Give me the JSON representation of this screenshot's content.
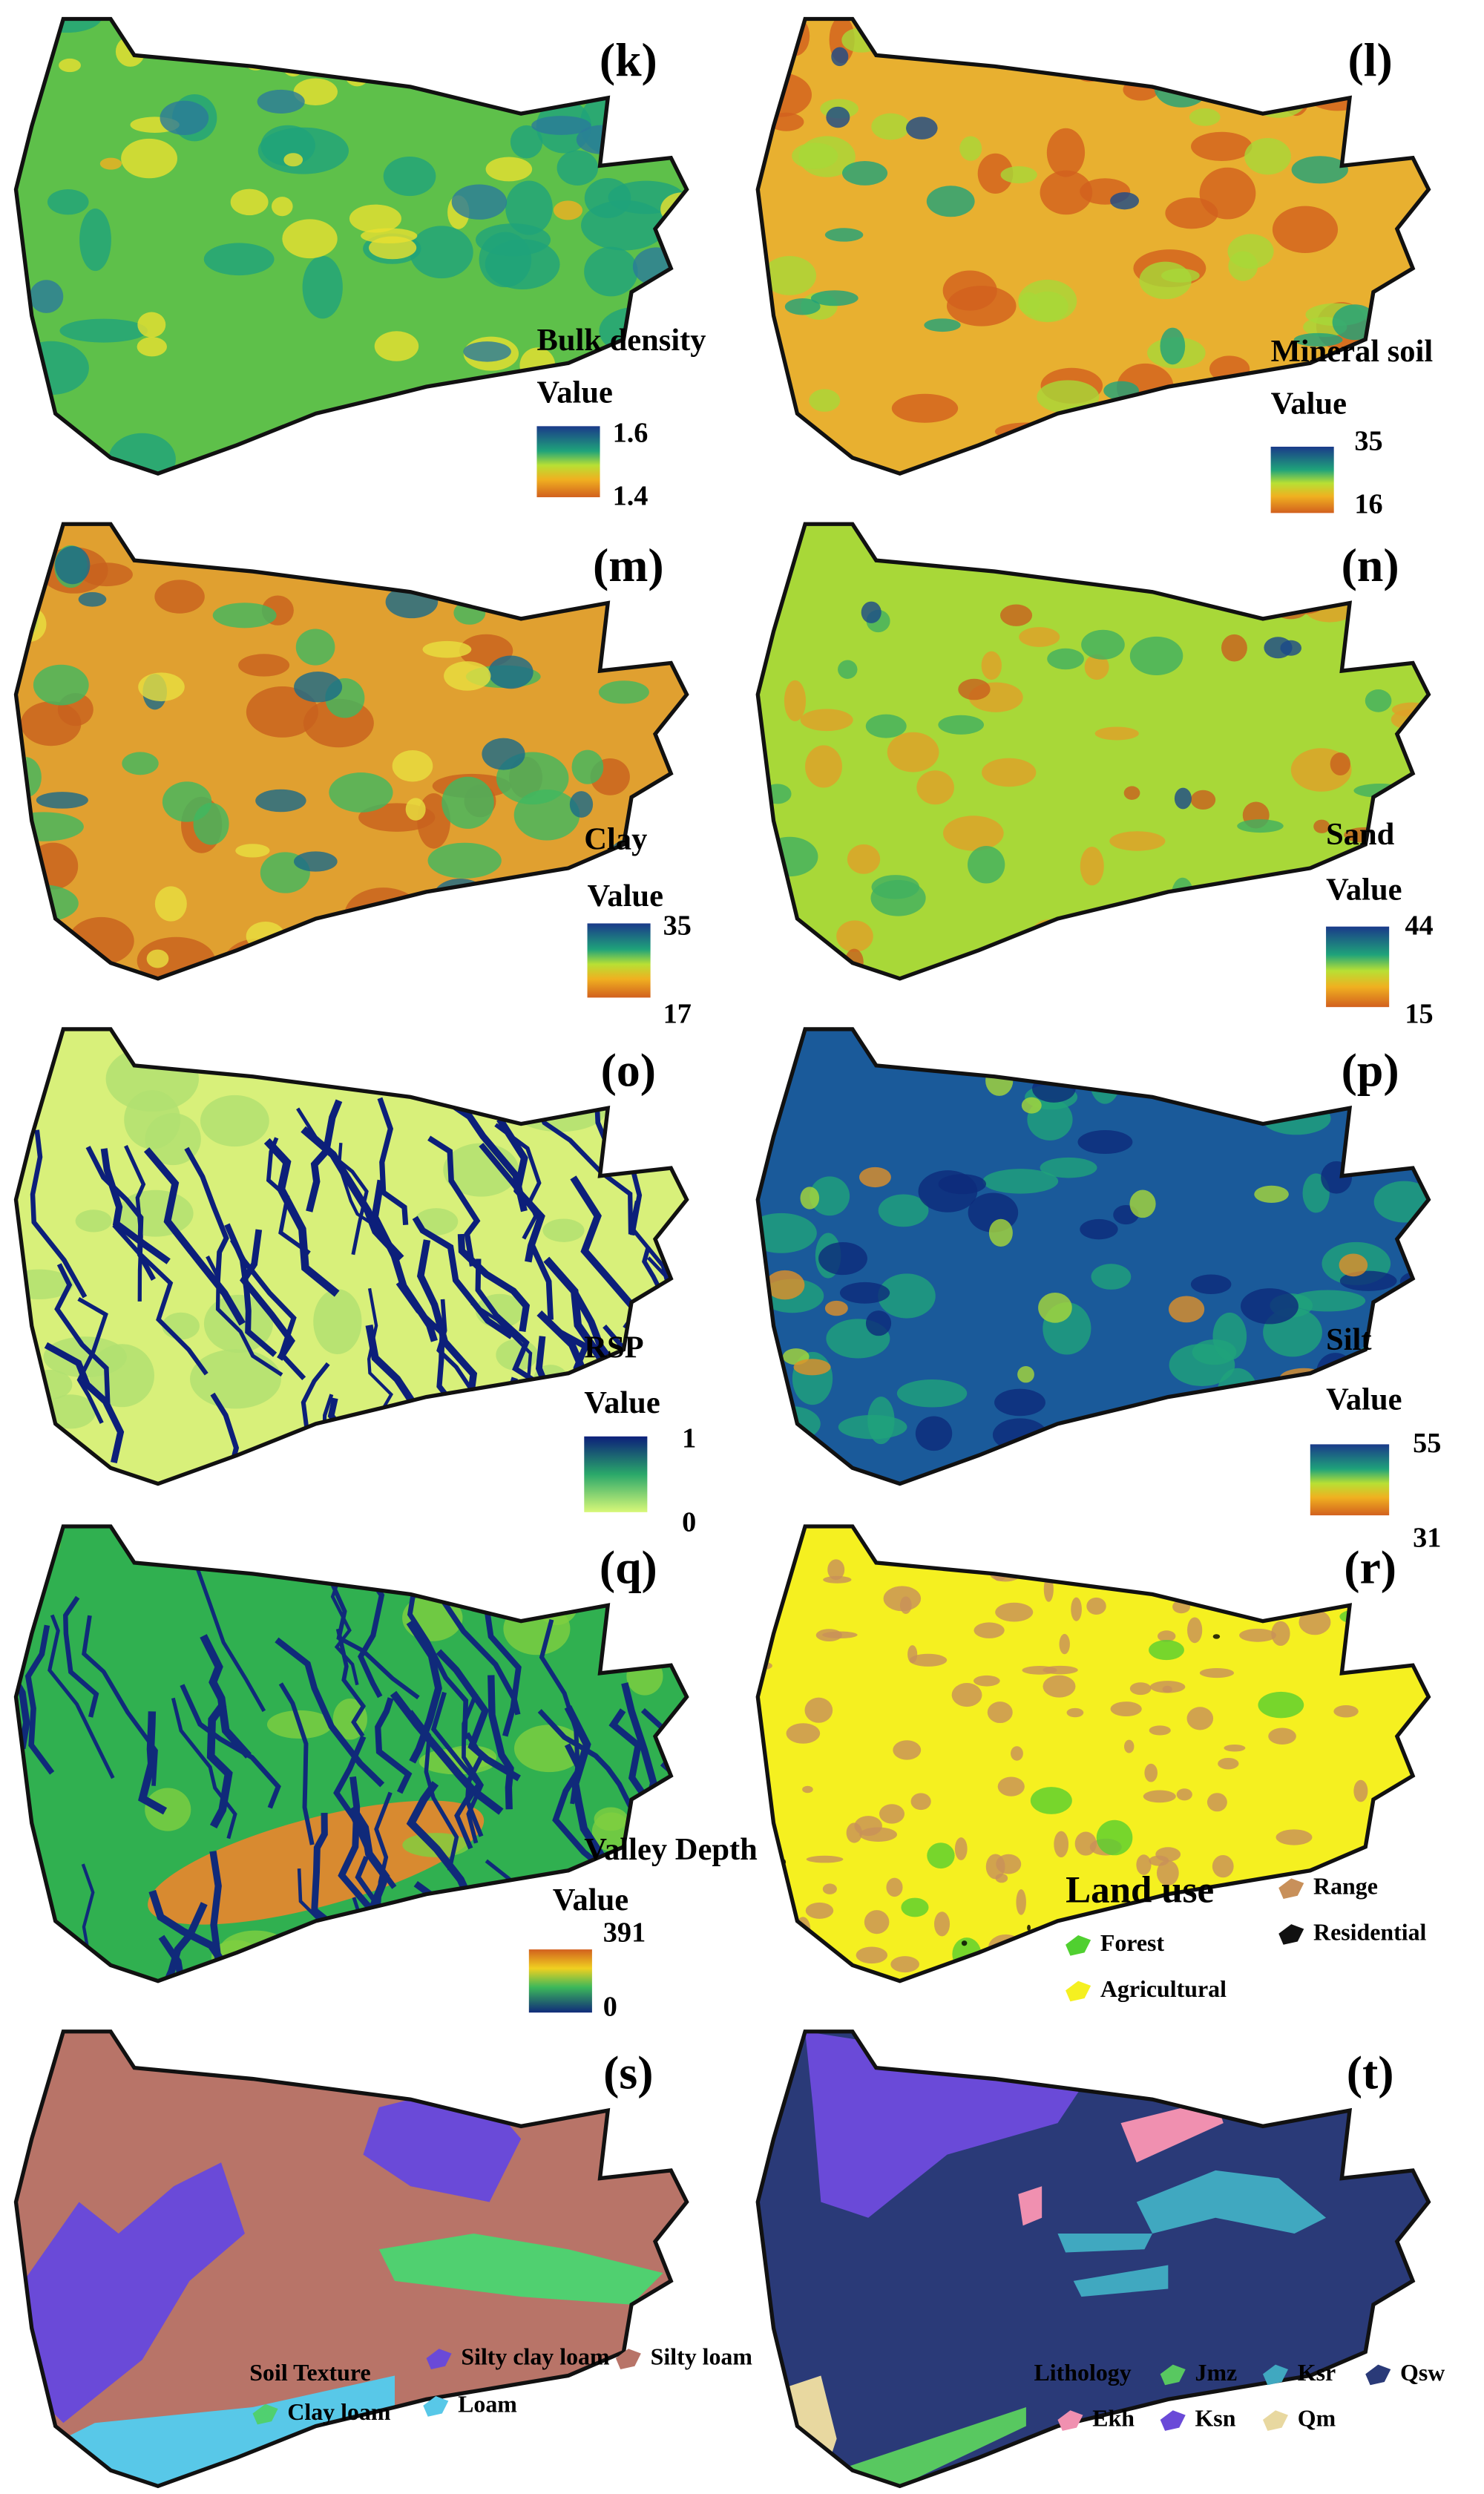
{
  "panels": [
    {
      "label": "(k)",
      "title": "Bulk density",
      "legend_title": "Value",
      "max_label": 1.6,
      "min_label": 1.4
    },
    {
      "label": "(l)",
      "title": "Mineral soil",
      "legend_title": "Value",
      "max_label": 35,
      "min_label": 16
    },
    {
      "label": "(m)",
      "title": "Clay",
      "legend_title": "Value",
      "max_label": 35,
      "min_label": 17
    },
    {
      "label": "(n)",
      "title": "Sand",
      "legend_title": "Value",
      "max_label": 44,
      "min_label": 15
    },
    {
      "label": "(o)",
      "title": "RSP",
      "legend_title": "Value",
      "max_label": 1,
      "min_label": 0
    },
    {
      "label": "(p)",
      "title": "Silt",
      "legend_title": "Value",
      "max_label": 55,
      "min_label": 31
    },
    {
      "label": "(q)",
      "title": "Valley Depth",
      "legend_title": "Value",
      "max_label": 391,
      "min_label": 0
    },
    {
      "label": "(r)",
      "title": "Land use",
      "items": [
        "Range",
        "Residential",
        "Forest",
        "Agricultural"
      ]
    },
    {
      "label": "(s)",
      "title": "Soil Texture",
      "items": [
        "Silty clay loam",
        "Silty loam",
        "Clay loam",
        "Loam"
      ]
    },
    {
      "label": "(t)",
      "title": "Lithology",
      "items": [
        "Jmz",
        "Ksr",
        "Qsw",
        "Ekh",
        "Ksn",
        "Qm"
      ]
    }
  ]
}
